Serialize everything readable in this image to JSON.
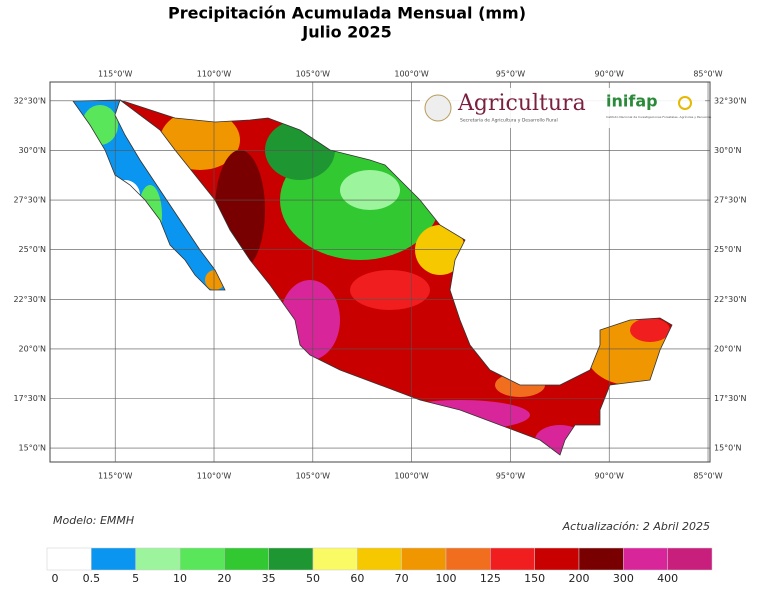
{
  "header": {
    "title": "Precipitación Acumulada Mensual (mm)",
    "subtitle": "Julio 2025"
  },
  "map": {
    "xlim": [
      -118.3,
      -84.9
    ],
    "ylim": [
      14.3,
      33.45
    ],
    "lon_ticks": [
      {
        "value": -115,
        "label": "115°0'W"
      },
      {
        "value": -110,
        "label": "110°0'W"
      },
      {
        "value": -105,
        "label": "105°0'W"
      },
      {
        "value": -100,
        "label": "100°0'W"
      },
      {
        "value": -95,
        "label": "95°0'W"
      },
      {
        "value": -90,
        "label": "90°0'W"
      },
      {
        "value": -85,
        "label": "85°0'W"
      }
    ],
    "lat_ticks": [
      {
        "value": 32.5,
        "label": "32°30'N"
      },
      {
        "value": 30,
        "label": "30°0'N"
      },
      {
        "value": 27.5,
        "label": "27°30'N"
      },
      {
        "value": 25,
        "label": "25°0'N"
      },
      {
        "value": 22.5,
        "label": "22°30'N"
      },
      {
        "value": 20,
        "label": "20°0'N"
      },
      {
        "value": 17.5,
        "label": "17°30'N"
      },
      {
        "value": 15,
        "label": "15°0'N"
      }
    ]
  },
  "logos": {
    "agricultura": "Agricultura",
    "agricultura_sub": "Secretaría de Agricultura y Desarrollo Rural",
    "inifap": "inifap",
    "inifap_sub": "Instituto Nacional de Investigaciones Forestales, Agrícolas y Pecuarias"
  },
  "footer": {
    "model": "Modelo: EMMH",
    "update": "Actualización: 2 Abril 2025"
  },
  "legend": {
    "labels": [
      0,
      0.5,
      5,
      10,
      20,
      35,
      50,
      60,
      70,
      100,
      125,
      150,
      200,
      300,
      400
    ],
    "colors": [
      "#ffffff",
      "#0a96f0",
      "#9cf59c",
      "#5ae65a",
      "#32c832",
      "#1e9632",
      "#fafa64",
      "#f5c800",
      "#f09600",
      "#f06e1e",
      "#f01e1e",
      "#c80000",
      "#780000",
      "#d8269a",
      "#c81f7c"
    ]
  }
}
